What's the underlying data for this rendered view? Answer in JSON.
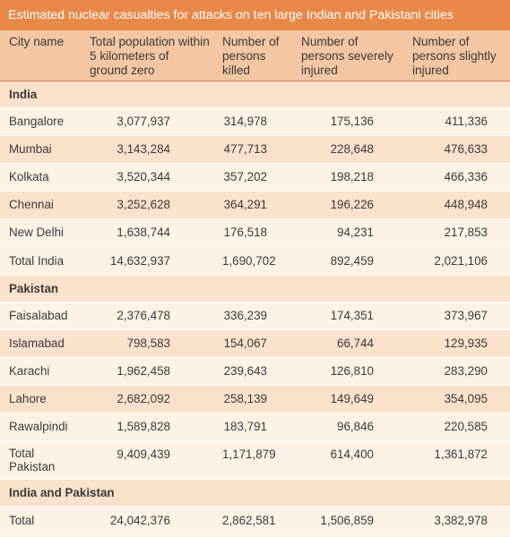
{
  "title": "Estimated nuclear casualties for attacks on ten large Indian and Pakistani cities",
  "headers": [
    "City name",
    "Total population within 5 kilometers of ground zero",
    "Number of persons killed",
    "Number of persons severely injured",
    "Number of persons slightly injured"
  ],
  "sections": [
    {
      "name": "India",
      "rows": [
        [
          "Bangalore",
          "3,077,937",
          "314,978",
          "175,136",
          "411,336"
        ],
        [
          "Mumbai",
          "3,143,284",
          "477,713",
          "228,648",
          "476,633"
        ],
        [
          "Kolkata",
          "3,520,344",
          "357,202",
          "198,218",
          "466,336"
        ],
        [
          "Chennai",
          "3,252,628",
          "364,291",
          "196,226",
          "448,948"
        ],
        [
          "New Delhi",
          "1,638,744",
          "176,518",
          "94,231",
          "217,853"
        ]
      ],
      "total": [
        "Total India",
        "14,632,937",
        "1,690,702",
        "892,459",
        "2,021,106"
      ]
    },
    {
      "name": "Pakistan",
      "rows": [
        [
          "Faisalabad",
          "2,376,478",
          "336,239",
          "174,351",
          "373,967"
        ],
        [
          "Islamabad",
          "798,583",
          "154,067",
          "66,744",
          "129,935"
        ],
        [
          "Karachi",
          "1,962,458",
          "239,643",
          "126,810",
          "283,290"
        ],
        [
          "Lahore",
          "2,682,092",
          "258,139",
          "149,649",
          "354,095"
        ],
        [
          "Rawalpindi",
          "1,589,828",
          "183,791",
          "96,846",
          "220,585"
        ]
      ],
      "total": [
        "Total Pakistan",
        "9,409,439",
        "1,171,879",
        "614,400",
        "1,361,872"
      ]
    },
    {
      "name": "India and Pakistan",
      "rows": [],
      "total": [
        "Total",
        "24,042,376",
        "2,862,581",
        "1,506,859",
        "3,382,978"
      ]
    }
  ]
}
